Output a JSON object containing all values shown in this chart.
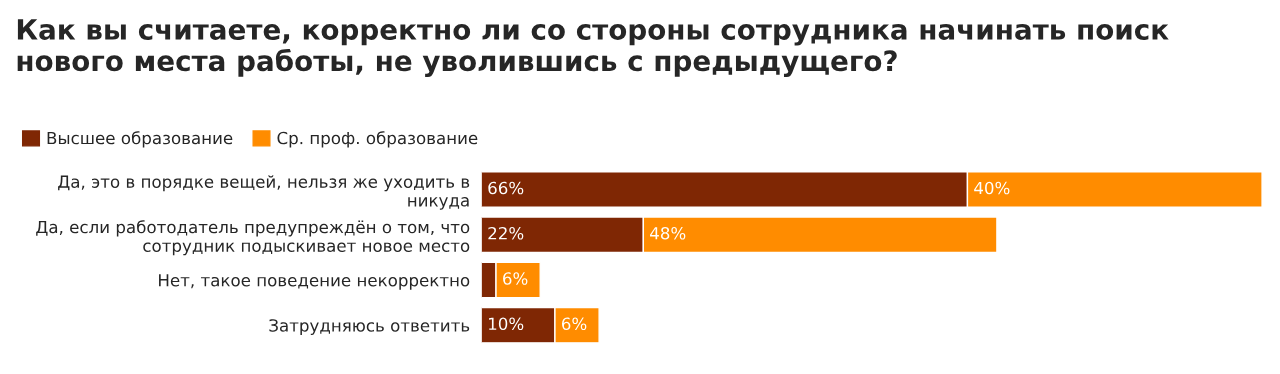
{
  "chart_data": {
    "type": "bar",
    "orientation": "horizontal",
    "stacked": true,
    "title": "Как вы считаете, корректно ли со стороны сотрудника начинать поиск\nнового места работы, не уволившись с предыдущего?",
    "categories": [
      "Да, это в порядке вещей, нельзя же уходить в\nникуда",
      "Да, если работодатель предупреждён о том, что\nсотрудник подыскивает новое место",
      "Нет, такое поведение некорректно",
      "Затрудняюсь ответить"
    ],
    "series": [
      {
        "name": "Высшее образование",
        "color": "#7f2704",
        "values": [
          66,
          22,
          2,
          10
        ],
        "value_labels": [
          "66%",
          "22%",
          null,
          "10%"
        ]
      },
      {
        "name": "Ср. проф. образование",
        "color": "#ff8c00",
        "values": [
          40,
          48,
          6,
          6
        ],
        "value_labels": [
          "40%",
          "48%",
          "6%",
          "6%"
        ]
      }
    ],
    "legend": "top left"
  }
}
